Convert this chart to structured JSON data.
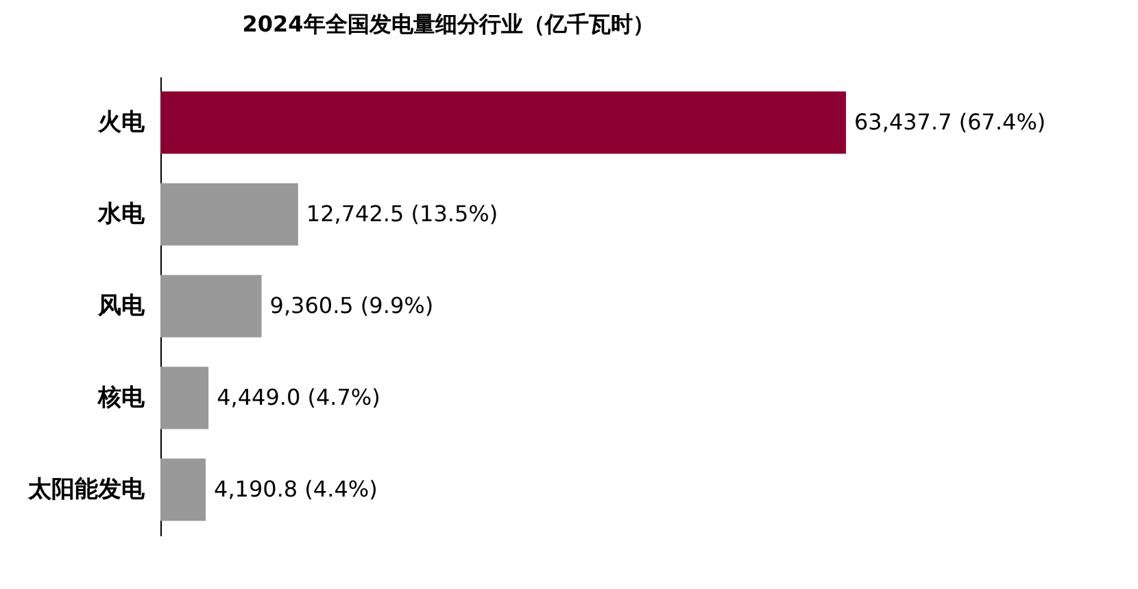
{
  "chart_data": {
    "type": "bar",
    "orientation": "horizontal",
    "title": "2024年全国发电量细分行业（亿千瓦时）",
    "categories": [
      "火电",
      "水电",
      "风电",
      "核电",
      "太阳能发电"
    ],
    "values": [
      63437.7,
      12742.5,
      9360.5,
      4449.0,
      4190.8
    ],
    "colors": [
      "#8b0030",
      "#999999",
      "#999999",
      "#999999",
      "#999999"
    ],
    "value_labels": [
      "63,437.7 (67.4%)",
      "12,742.5 (13.5%)",
      "9,360.5 (9.9%)",
      "4,449.0 (4.7%)",
      "4,190.8 (4.4%)"
    ]
  }
}
